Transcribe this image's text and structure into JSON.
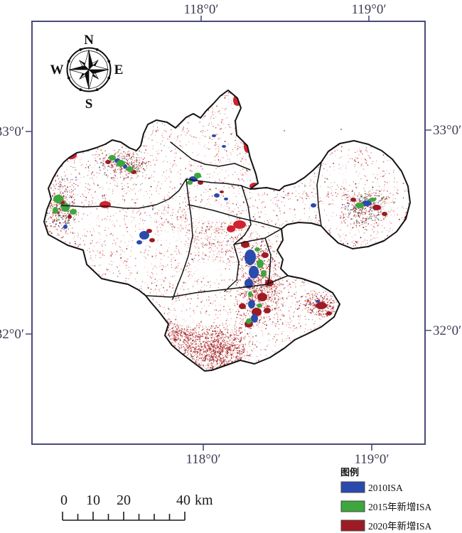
{
  "figure": {
    "kind": "ISA distribution map",
    "background": "#ffffff"
  },
  "map_frame": {
    "border_color": "#4a4a7c",
    "label_color": "#3c3c55",
    "lon_labels": [
      "118°0′",
      "119°0′"
    ],
    "lat_labels": [
      "33°0′",
      "32°0′"
    ]
  },
  "compass": {
    "n": "N",
    "e": "E",
    "s": "S",
    "w": "W"
  },
  "scale_bar": {
    "tick_labels": [
      "0",
      "10",
      "20",
      "40"
    ],
    "unit": "km"
  },
  "legend": {
    "title": "图例",
    "items": [
      {
        "label": "2010ISA",
        "color": "#2a4aad"
      },
      {
        "label": "2015年新增ISA",
        "color": "#3da63c"
      },
      {
        "label": "2020年新增ISA",
        "color": "#9e1b23"
      }
    ]
  },
  "map_content": {
    "speckle_palette": [
      "#eba9a5",
      "#e28e8a",
      "#d97370",
      "#c75a55",
      "#aa3c3c"
    ],
    "accent_blue": "#4a5fae",
    "accent_green": "#55a04e",
    "accent_dark_red": "#8e2430",
    "bright_red": "#cf2330",
    "boundary_color": "#141414"
  }
}
